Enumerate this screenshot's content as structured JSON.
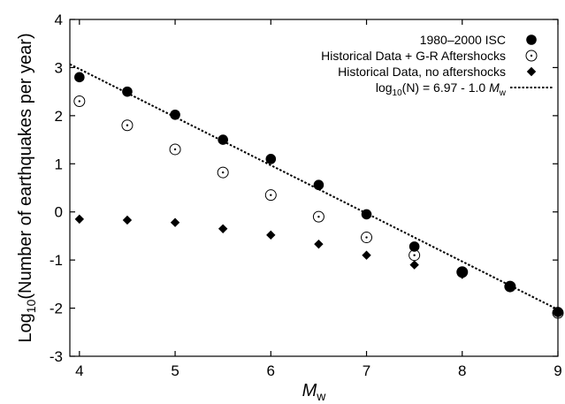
{
  "chart_data": {
    "type": "scatter",
    "xlabel": "M",
    "xlabel_sub": "w",
    "ylabel_pre": "Log",
    "ylabel_sub": "10",
    "ylabel_post": "(Number of earthquakes per year)",
    "xlim": [
      3.9,
      9.0
    ],
    "ylim": [
      -3,
      4
    ],
    "xticks": [
      4,
      5,
      6,
      7,
      8,
      9
    ],
    "yticks": [
      -3,
      -2,
      -1,
      0,
      1,
      2,
      3,
      4
    ],
    "grid": false,
    "legend_position": "top-right",
    "series": [
      {
        "name": "1980–2000 ISC",
        "marker": "filled-circle",
        "x": [
          4.0,
          4.5,
          5.0,
          5.5,
          6.0,
          6.5,
          7.0,
          7.5,
          8.0,
          8.5,
          9.0
        ],
        "y": [
          2.8,
          2.5,
          2.02,
          1.5,
          1.1,
          0.56,
          -0.05,
          -0.72,
          -1.25,
          -1.55,
          -2.08
        ]
      },
      {
        "name": "Historical Data + G-R Aftershocks",
        "marker": "open-circle",
        "x": [
          4.0,
          4.5,
          5.0,
          5.5,
          6.0,
          6.5,
          7.0,
          7.5,
          8.0,
          8.5,
          9.0
        ],
        "y": [
          2.3,
          1.8,
          1.3,
          0.82,
          0.35,
          -0.1,
          -0.53,
          -0.9,
          -1.25,
          -1.55,
          -2.1
        ]
      },
      {
        "name": "Historical Data, no aftershocks",
        "marker": "filled-diamond",
        "x": [
          4.0,
          4.5,
          5.0,
          5.5,
          6.0,
          6.5,
          7.0,
          7.5,
          8.0,
          8.5,
          9.0
        ],
        "y": [
          -0.15,
          -0.17,
          -0.22,
          -0.35,
          -0.48,
          -0.67,
          -0.9,
          -1.1,
          -1.3,
          -1.55,
          -2.08
        ]
      },
      {
        "name_pre": "log",
        "name_sub": "10",
        "name_mid": "(N) = 6.97 - 1.0 ",
        "name_var": "M",
        "name_var_sub": "w",
        "marker": "dotted-line",
        "intercept": 6.97,
        "slope": -1.0
      }
    ]
  }
}
